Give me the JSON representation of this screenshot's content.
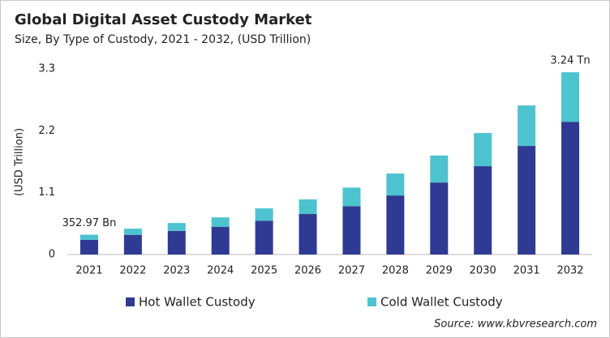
{
  "chart_data": {
    "type": "stacked_bar",
    "title": "Global Digital Asset Custody Market",
    "subtitle": "Size, By Type of Custody, 2021 - 2032, (USD Trillion)",
    "y_label": "(USD Trillion)",
    "categories": [
      "2021",
      "2022",
      "2023",
      "2024",
      "2025",
      "2026",
      "2027",
      "2028",
      "2029",
      "2030",
      "2031",
      "2032"
    ],
    "series": [
      {
        "name": "Hot Wallet Custody",
        "color": "#2e3a93",
        "values": [
          0.26,
          0.35,
          0.42,
          0.49,
          0.6,
          0.72,
          0.86,
          1.05,
          1.28,
          1.57,
          1.93,
          2.36
        ]
      },
      {
        "name": "Cold Wallet Custody",
        "color": "#4dc3cf",
        "values": [
          0.093,
          0.11,
          0.14,
          0.17,
          0.22,
          0.26,
          0.33,
          0.39,
          0.48,
          0.59,
          0.72,
          0.88
        ]
      }
    ],
    "annotations": [
      "352.97 Bn",
      "3.24 Tn"
    ],
    "ylim": [
      0,
      3.3
    ],
    "yticks": [
      0,
      1.1,
      2.2,
      3.3
    ],
    "source": "Source: www.kbvresearch.com"
  }
}
